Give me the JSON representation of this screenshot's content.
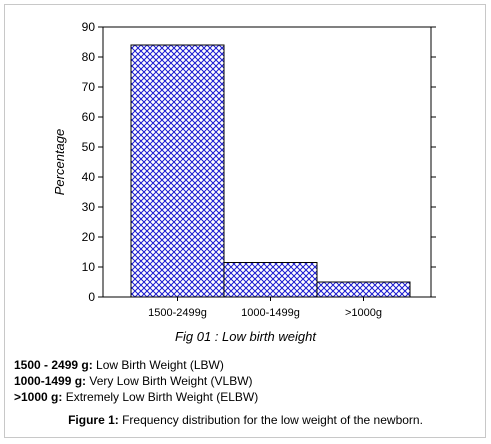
{
  "chart_data": {
    "type": "bar",
    "categories": [
      "1500-2499g",
      "1000-1499g",
      ">1000g"
    ],
    "values": [
      84,
      11.5,
      5
    ],
    "ylabel": "Percentage",
    "xlabel": "",
    "ylim": [
      0,
      90
    ],
    "yticks": [
      "0",
      "10",
      "20",
      "30",
      "40",
      "50",
      "60",
      "70",
      "80",
      "90"
    ],
    "bar_fill": "#1a1ad0",
    "pattern": "cross-hatch",
    "grid": false
  },
  "chart_caption": "Fig 01 : Low birth weight",
  "legend": [
    {
      "key": "1500 - 2499 g:",
      "text": " Low Birth Weight (LBW)"
    },
    {
      "key": "1000-1499 g:",
      "text": " Very Low Birth Weight (VLBW)"
    },
    {
      "key": ">1000 g:",
      "text": " Extremely Low Birth Weight (ELBW)"
    }
  ],
  "figure": {
    "label": "Figure 1:",
    "text": " Frequency distribution for the low weight of the newborn."
  }
}
